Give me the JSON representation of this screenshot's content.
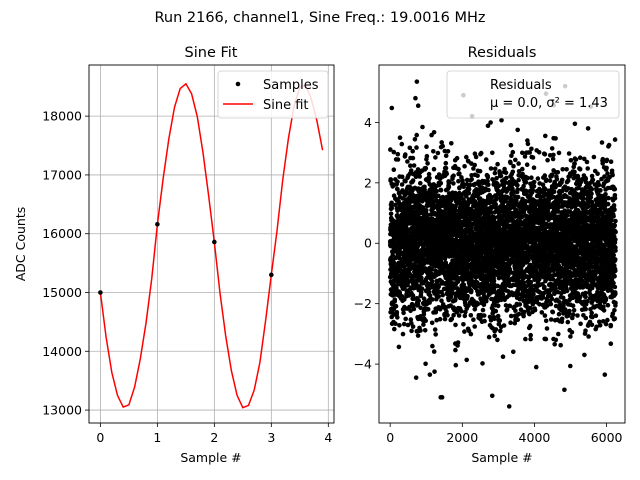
{
  "figure_title": "Run 2166, channel1, Sine Freq.: 19.0016 MHz",
  "chart_data": [
    {
      "type": "line",
      "title": "Sine Fit",
      "xlabel": "Sample #",
      "ylabel": "ADC Counts",
      "xlim": [
        -0.2,
        4.1
      ],
      "ylim": [
        12780,
        18870
      ],
      "xticks": [
        0,
        1,
        2,
        3,
        4
      ],
      "yticks": [
        13000,
        14000,
        15000,
        16000,
        17000,
        18000
      ],
      "grid": true,
      "legend_position": "top-right",
      "series": [
        {
          "name": "Samples",
          "style": "markers",
          "color": "#000000",
          "x": [
            0,
            1,
            2,
            3
          ],
          "y": [
            15000,
            16160,
            15860,
            15300
          ]
        },
        {
          "name": "Sine fit",
          "style": "line",
          "color": "#ff0000",
          "x": [
            0.0,
            0.1,
            0.2,
            0.3,
            0.4,
            0.5,
            0.6,
            0.7,
            0.8,
            0.9,
            1.0,
            1.1,
            1.2,
            1.3,
            1.4,
            1.5,
            1.6,
            1.7,
            1.8,
            1.9,
            2.0,
            2.1,
            2.2,
            2.3,
            2.4,
            2.5,
            2.6,
            2.7,
            2.8,
            2.9,
            3.0,
            3.1,
            3.2,
            3.3,
            3.4,
            3.5,
            3.6,
            3.7,
            3.8,
            3.9
          ],
          "y": [
            15000,
            14240,
            13640,
            13250,
            13050,
            13090,
            13390,
            13870,
            14480,
            15230,
            16160,
            16930,
            17610,
            18150,
            18470,
            18550,
            18380,
            17990,
            17380,
            16640,
            15860,
            14990,
            14260,
            13670,
            13250,
            13040,
            13080,
            13340,
            13810,
            14520,
            15300,
            16050,
            16910,
            17620,
            18180,
            18490,
            18530,
            18300,
            17920,
            17420
          ]
        }
      ]
    },
    {
      "type": "scatter",
      "title": "Residuals",
      "xlabel": "Sample #",
      "ylabel": "",
      "xlim": [
        -310,
        6510
      ],
      "ylim": [
        -5.95,
        5.9
      ],
      "xticks": [
        0,
        2000,
        4000,
        6000
      ],
      "yticks": [
        -4,
        -2,
        0,
        2,
        4
      ],
      "grid": false,
      "legend_position": "top-right",
      "legend_title": "Residuals",
      "legend_stats": "μ = 0.0, σ² = 1.43",
      "n_points": 6250,
      "mean": 0.0,
      "variance": 1.43,
      "outliers": [
        {
          "x": 740,
          "y": 5.35
        },
        {
          "x": 700,
          "y": 4.8
        },
        {
          "x": 2030,
          "y": 4.9
        },
        {
          "x": 4850,
          "y": 5.2
        },
        {
          "x": 4320,
          "y": 4.95
        },
        {
          "x": 1400,
          "y": -5.1
        },
        {
          "x": 1440,
          "y": -5.1
        },
        {
          "x": 2830,
          "y": -5.05
        },
        {
          "x": 3300,
          "y": -5.4
        },
        {
          "x": 4830,
          "y": -4.85
        },
        {
          "x": 720,
          "y": -4.45
        },
        {
          "x": 1100,
          "y": -4.35
        },
        {
          "x": 5950,
          "y": -4.35
        },
        {
          "x": 4050,
          "y": -4.1
        },
        {
          "x": 1230,
          "y": -4.25
        }
      ],
      "series": [
        {
          "name": "Residuals",
          "style": "markers",
          "color": "#000000"
        }
      ]
    }
  ]
}
